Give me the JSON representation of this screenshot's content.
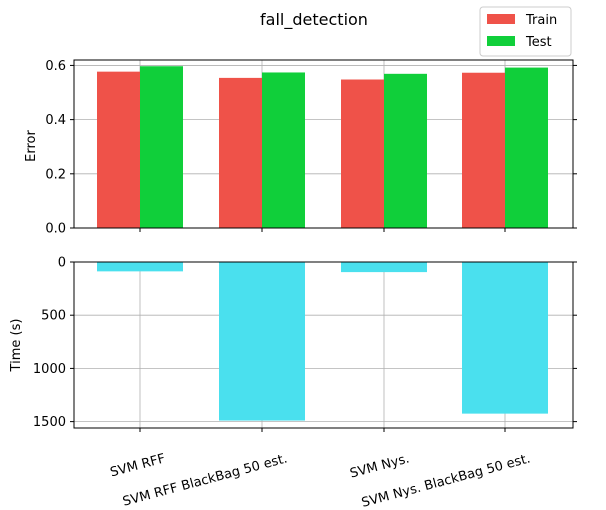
{
  "chart_data": [
    {
      "type": "bar",
      "title": "fall_detection",
      "categories": [
        "SVM RFF",
        "SVM RFF BlackBag 50 est.",
        "SVM Nys.",
        "SVM Nys. BlackBag 50 est."
      ],
      "series": [
        {
          "name": "Train",
          "values": [
            0.577,
            0.554,
            0.548,
            0.573
          ],
          "color": "#ef5249"
        },
        {
          "name": "Test",
          "values": [
            0.597,
            0.574,
            0.569,
            0.592
          ],
          "color": "#10cf3a"
        }
      ],
      "xlabel": "",
      "ylabel": "Error",
      "ylim": [
        0,
        0.62
      ],
      "yticks": [
        "0.0",
        "0.2",
        "0.4",
        "0.6"
      ],
      "grid": true,
      "legend": "top-right"
    },
    {
      "type": "bar",
      "categories": [
        "SVM RFF",
        "SVM RFF BlackBag 50 est.",
        "SVM Nys.",
        "SVM Nys. BlackBag 50 est."
      ],
      "series": [
        {
          "values": [
            88,
            1490,
            95,
            1425
          ],
          "color": "#4ae0ee"
        }
      ],
      "xlabel": "",
      "ylabel": "Time (s)",
      "ylim": [
        0,
        1560
      ],
      "y_inverted": true,
      "yticks": [
        "0",
        "500",
        "1000",
        "1500"
      ],
      "grid": true
    }
  ]
}
